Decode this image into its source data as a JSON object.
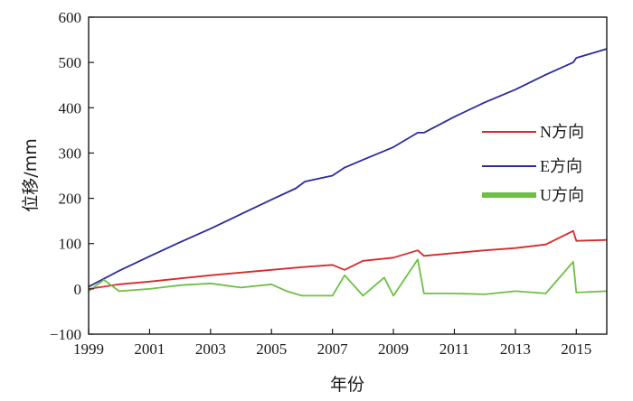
{
  "chart_data": {
    "type": "line",
    "xlabel": "年份",
    "ylabel": "位移/mm",
    "xlim": [
      1999,
      2016
    ],
    "ylim": [
      -100,
      600
    ],
    "x_ticks": [
      "1999",
      "2001",
      "2003",
      "2005",
      "2007",
      "2009",
      "2011",
      "2013",
      "2015"
    ],
    "y_ticks": [
      "−100",
      "0",
      "100",
      "200",
      "300",
      "400",
      "500",
      "600"
    ],
    "grid": false,
    "legend_position": "right",
    "series": [
      {
        "name": "N方向",
        "color": "#d62a2a",
        "x": [
          1999.0,
          2000.0,
          2001.0,
          2002.0,
          2003.0,
          2004.0,
          2005.0,
          2006.0,
          2007.0,
          2007.4,
          2008.0,
          2009.0,
          2009.8,
          2010.0,
          2011.0,
          2012.0,
          2013.0,
          2014.0,
          2014.9,
          2015.0,
          2016.0
        ],
        "y": [
          0,
          10,
          16,
          23,
          30,
          36,
          42,
          48,
          53,
          42,
          62,
          69,
          85,
          73,
          79,
          85,
          90,
          98,
          128,
          106,
          108
        ]
      },
      {
        "name": "E方向",
        "color": "#2b2b9a",
        "x": [
          1999.0,
          2000.0,
          2001.0,
          2002.0,
          2003.0,
          2004.0,
          2005.0,
          2005.8,
          2006.1,
          2007.0,
          2007.4,
          2008.0,
          2009.0,
          2009.8,
          2010.0,
          2011.0,
          2012.0,
          2013.0,
          2014.0,
          2014.9,
          2015.0,
          2016.0
        ],
        "y": [
          5,
          40,
          72,
          103,
          133,
          165,
          197,
          222,
          237,
          250,
          268,
          285,
          313,
          345,
          345,
          380,
          412,
          440,
          473,
          500,
          510,
          530
        ]
      },
      {
        "name": "U方向",
        "color": "#6cc043",
        "x": [
          1999.0,
          1999.5,
          2000.0,
          2001.0,
          2002.0,
          2003.0,
          2004.0,
          2005.0,
          2005.5,
          2006.0,
          2007.0,
          2007.4,
          2008.0,
          2008.7,
          2009.0,
          2009.8,
          2010.0,
          2011.0,
          2012.0,
          2013.0,
          2014.0,
          2014.9,
          2015.0,
          2016.0
        ],
        "y": [
          -5,
          20,
          -5,
          0,
          8,
          12,
          3,
          10,
          -5,
          -15,
          -15,
          30,
          -15,
          25,
          -15,
          65,
          -10,
          -10,
          -12,
          -5,
          -10,
          60,
          -8,
          -5
        ]
      }
    ]
  }
}
